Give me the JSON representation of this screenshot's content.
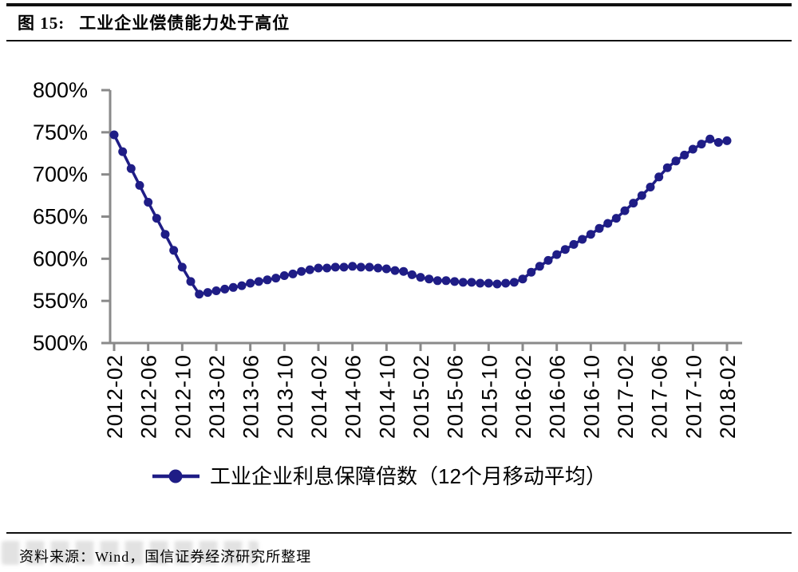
{
  "figure": {
    "number_label": "图 15:",
    "title": "工业企业偿债能力处于高位"
  },
  "footer": {
    "source": "资料来源：Wind，国信证券经济研究所整理"
  },
  "chart_data": {
    "type": "line",
    "legend": "工业企业利息保障倍数（12个月移动平均）",
    "legend_position": "bottom",
    "grid": false,
    "unit": "%",
    "ylim": [
      500,
      800
    ],
    "y_ticks": [
      800,
      750,
      700,
      650,
      600,
      550,
      500
    ],
    "y_tick_labels": [
      "800%",
      "750%",
      "700%",
      "650%",
      "600%",
      "550%",
      "500%"
    ],
    "x_tick_labels": [
      "2012-02",
      "2012-06",
      "2012-10",
      "2013-02",
      "2013-06",
      "2013-10",
      "2014-02",
      "2014-06",
      "2014-10",
      "2015-02",
      "2015-06",
      "2015-10",
      "2016-02",
      "2016-06",
      "2016-10",
      "2017-02",
      "2017-06",
      "2017-10",
      "2018-02"
    ],
    "x": [
      "2012-02",
      "2012-03",
      "2012-04",
      "2012-05",
      "2012-06",
      "2012-07",
      "2012-08",
      "2012-09",
      "2012-10",
      "2012-11",
      "2012-12",
      "2013-01",
      "2013-02",
      "2013-03",
      "2013-04",
      "2013-05",
      "2013-06",
      "2013-07",
      "2013-08",
      "2013-09",
      "2013-10",
      "2013-11",
      "2013-12",
      "2014-01",
      "2014-02",
      "2014-03",
      "2014-04",
      "2014-05",
      "2014-06",
      "2014-07",
      "2014-08",
      "2014-09",
      "2014-10",
      "2014-11",
      "2014-12",
      "2015-01",
      "2015-02",
      "2015-03",
      "2015-04",
      "2015-05",
      "2015-06",
      "2015-07",
      "2015-08",
      "2015-09",
      "2015-10",
      "2015-11",
      "2015-12",
      "2016-01",
      "2016-02",
      "2016-03",
      "2016-04",
      "2016-05",
      "2016-06",
      "2016-07",
      "2016-08",
      "2016-09",
      "2016-10",
      "2016-11",
      "2016-12",
      "2017-01",
      "2017-02",
      "2017-03",
      "2017-04",
      "2017-05",
      "2017-06",
      "2017-07",
      "2017-08",
      "2017-09",
      "2017-10",
      "2017-11",
      "2017-12",
      "2018-01",
      "2018-02"
    ],
    "values": [
      747,
      727,
      707,
      687,
      667,
      648,
      629,
      610,
      590,
      573,
      558,
      560,
      562,
      564,
      566,
      568,
      571,
      573,
      575,
      577,
      580,
      582,
      585,
      587,
      589,
      589,
      590,
      590,
      591,
      590,
      590,
      589,
      588,
      586,
      585,
      581,
      578,
      576,
      574,
      574,
      573,
      572,
      572,
      571,
      571,
      570,
      571,
      572,
      576,
      584,
      591,
      598,
      605,
      611,
      617,
      623,
      629,
      636,
      642,
      648,
      657,
      666,
      675,
      685,
      697,
      708,
      716,
      723,
      730,
      736,
      742,
      738,
      740
    ],
    "line_color": "#1f1d86",
    "axis_color": "#8a8a8a",
    "tick_label_color": "#000000"
  }
}
